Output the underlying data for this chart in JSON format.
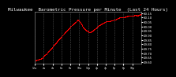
{
  "title": "Milwaukee  Barometric Pressure per Minute  (Last 24 Hours)",
  "line_color": "#ff0000",
  "bg_color": "#000000",
  "plot_bg_color": "#000000",
  "grid_color": "#555555",
  "title_color": "#ffffff",
  "tick_color": "#ffffff",
  "y_min": 29.58,
  "y_max": 30.16,
  "n_points": 1440,
  "marker_size": 0.9,
  "title_fontsize": 4.2,
  "tick_fontsize": 2.8,
  "x_tick_fontsize": 2.3,
  "y_ticks": [
    29.6,
    29.65,
    29.7,
    29.75,
    29.8,
    29.85,
    29.9,
    29.95,
    30.0,
    30.05,
    30.1,
    30.15
  ],
  "pressure_keypoints": [
    [
      0,
      29.6
    ],
    [
      100,
      29.63
    ],
    [
      200,
      29.72
    ],
    [
      300,
      29.82
    ],
    [
      400,
      29.92
    ],
    [
      480,
      30.0
    ],
    [
      540,
      30.05
    ],
    [
      580,
      30.08
    ],
    [
      620,
      30.04
    ],
    [
      660,
      29.98
    ],
    [
      700,
      29.96
    ],
    [
      740,
      29.94
    ],
    [
      780,
      29.96
    ],
    [
      820,
      29.99
    ],
    [
      860,
      30.02
    ],
    [
      900,
      30.04
    ],
    [
      960,
      30.06
    ],
    [
      1020,
      30.06
    ],
    [
      1080,
      30.08
    ],
    [
      1140,
      30.1
    ],
    [
      1200,
      30.11
    ],
    [
      1300,
      30.12
    ],
    [
      1380,
      30.13
    ],
    [
      1439,
      30.14
    ]
  ]
}
